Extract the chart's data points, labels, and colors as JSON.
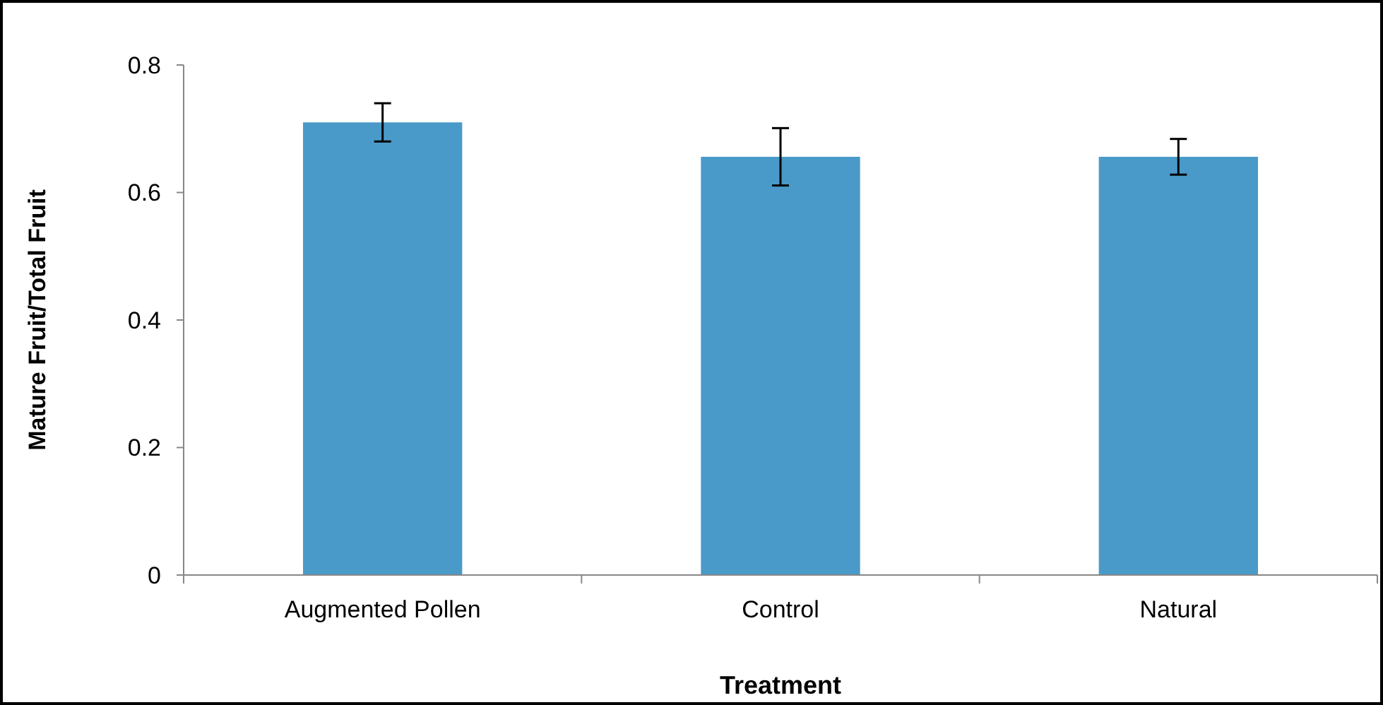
{
  "chart_data": {
    "type": "bar",
    "xlabel": "Treatment",
    "ylabel": "Mature Fruit/Total Fruit",
    "categories": [
      "Augmented Pollen",
      "Control",
      "Natural"
    ],
    "values": [
      0.71,
      0.656,
      0.656
    ],
    "errors": [
      0.03,
      0.045,
      0.028
    ],
    "color": "#4a9ac9",
    "ylim": [
      0,
      0.8
    ],
    "yticks": [
      0,
      0.2,
      0.4,
      0.6,
      0.8
    ],
    "grid": false
  }
}
